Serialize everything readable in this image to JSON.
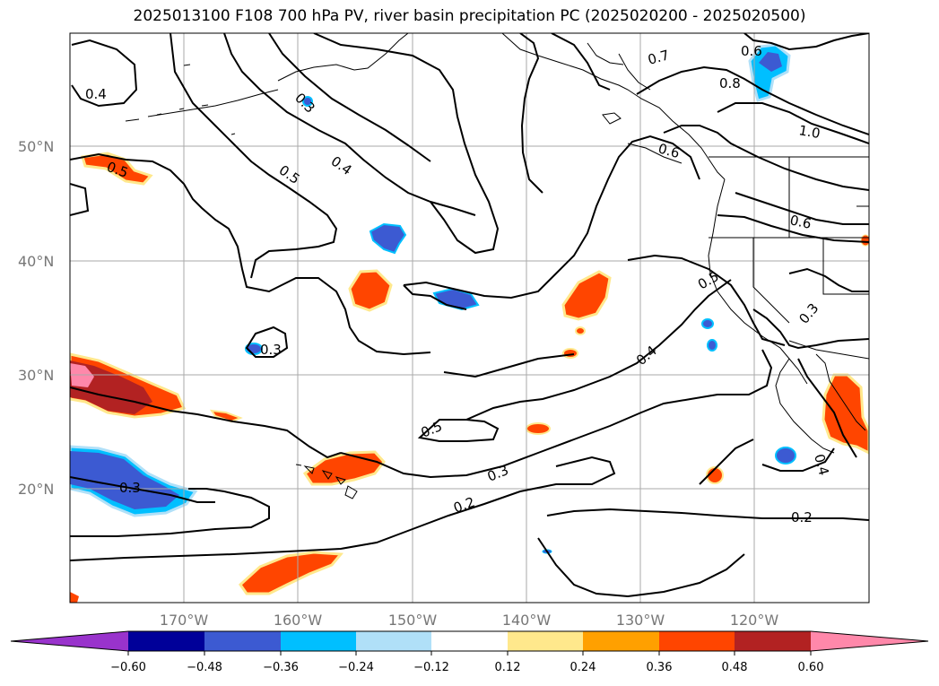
{
  "title": "2025013100 F108 700 hPa PV, river basin precipitation PC (2025020200 - 2025020500)",
  "map": {
    "latitude_labels": [
      "50°N",
      "40°N",
      "30°N",
      "20°N"
    ],
    "longitude_labels": [
      "170°W",
      "160°W",
      "150°W",
      "140°W",
      "130°W",
      "120°W"
    ],
    "contour_labels": [
      "0.4",
      "0.3",
      "0.5",
      "0.4",
      "0.5",
      "0.3",
      "0.7",
      "0.6",
      "0.8",
      "1.0",
      "0.6",
      "0.6",
      "0.5",
      "0.3",
      "0.4",
      "0.5",
      "0.3",
      "0.2",
      "0.3",
      "0.2",
      "0.4"
    ],
    "colors": {
      "purple": "#9933cc",
      "navy": "#000099",
      "royal_blue": "#3c5ad2",
      "sky_blue": "#00bfff",
      "light_blue": "#b0e0f8",
      "white": "#ffffff",
      "pale_yellow": "#ffe88c",
      "orange": "#ffa000",
      "red_orange": "#ff4500",
      "dark_red": "#b22222",
      "pink": "#ff88aa"
    }
  },
  "colorbar": {
    "tick_labels": [
      "−0.60",
      "−0.48",
      "−0.36",
      "−0.24",
      "−0.12",
      "0.12",
      "0.24",
      "0.36",
      "0.48",
      "0.60"
    ],
    "extend": "both"
  }
}
